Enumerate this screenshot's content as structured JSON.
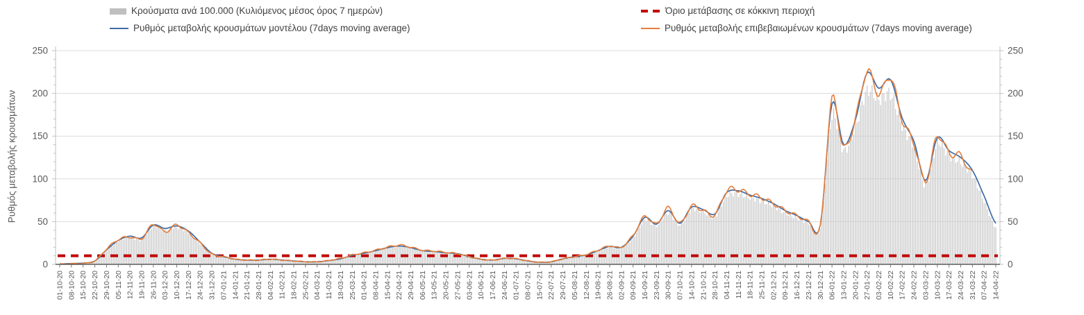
{
  "legend": {
    "items": [
      {
        "label": "Κρούσματα ανά 100.000 (Κυλιόμενος μέσος όρος 7 ημερών)",
        "swatch": "bar",
        "color": "#bfbfbf"
      },
      {
        "label": "Ρυθμός μεταβολής κρουσμάτων μοντέλου (7days moving average)",
        "swatch": "line",
        "color": "#3d6ca5"
      },
      {
        "label": "Όριο μετάβασης σε κόκκινη περιοχή",
        "swatch": "dashed",
        "color": "#c00000"
      },
      {
        "label": "Ρυθμός μεταβολής επιβεβαιωμένων κρουσμάτων (7days moving average)",
        "swatch": "line",
        "color": "#e67e3b"
      }
    ]
  },
  "axes": {
    "y_title": "Ρυθμός μεταβολής κρουσμάτων",
    "y_ticks": [
      0,
      50,
      100,
      150,
      200,
      250
    ],
    "y_minor_step": 10,
    "ylim": [
      0,
      250
    ]
  },
  "colors": {
    "bars": "#c8c8c8",
    "model": "#3d6ca5",
    "confirmed": "#e67e3b",
    "threshold": "#c00000",
    "grid": "#dcdcdc",
    "axis_vertical": "#c0c0c0",
    "axis_x": "#3f3f3f",
    "tick_text": "#595959"
  },
  "chart_data": {
    "type": "combo bar + line (daily bars, 7-day moving-average lines)",
    "title": "",
    "xlabel": "",
    "ylabel": "Ρυθμός μεταβολής κρουσμάτων",
    "ylim": [
      0,
      250
    ],
    "grid": true,
    "legend_position": "top",
    "threshold": {
      "label": "Όριο μετάβασης σε κόκκινη περιοχή",
      "value": 10
    },
    "categories": [
      "01-10-20",
      "08-10-20",
      "15-10-20",
      "22-10-20",
      "29-10-20",
      "05-11-20",
      "12-11-20",
      "19-11-20",
      "26-11-20",
      "03-12-20",
      "10-12-20",
      "17-12-20",
      "24-12-20",
      "31-12-20",
      "07-01-21",
      "14-01-21",
      "21-01-21",
      "28-01-21",
      "04-02-21",
      "11-02-21",
      "18-02-21",
      "25-02-21",
      "04-03-21",
      "11-03-21",
      "18-03-21",
      "25-03-21",
      "01-04-21",
      "08-04-21",
      "15-04-21",
      "22-04-21",
      "29-04-21",
      "06-05-21",
      "13-05-21",
      "20-05-21",
      "27-05-21",
      "03-06-21",
      "10-06-21",
      "17-06-21",
      "24-06-21",
      "01-07-21",
      "08-07-21",
      "15-07-21",
      "22-07-21",
      "29-07-21",
      "05-08-21",
      "12-08-21",
      "19-08-21",
      "26-08-21",
      "02-09-21",
      "09-09-21",
      "16-09-21",
      "23-09-21",
      "30-09-21",
      "07-10-21",
      "14-10-21",
      "21-10-21",
      "28-10-21",
      "04-11-21",
      "11-11-21",
      "18-11-21",
      "25-11-21",
      "02-12-21",
      "09-12-21",
      "16-12-21",
      "23-12-21",
      "30-12-21",
      "06-01-22",
      "13-01-22",
      "20-01-22",
      "27-01-22",
      "03-02-22",
      "10-02-22",
      "17-02-22",
      "24-02-22",
      "03-03-22",
      "10-03-22",
      "17-03-22",
      "24-03-22",
      "31-03-22",
      "07-04-22",
      "14-04-22"
    ],
    "series": [
      {
        "name": "Κρούσματα ανά 100.000 (Κυλιόμενος μέσος όρος 7 ημερών)",
        "type": "bar",
        "values": [
          0.3,
          0.8,
          1.2,
          3.5,
          16,
          27,
          31,
          29,
          44,
          40,
          43,
          37,
          24,
          12,
          8,
          5.5,
          4.5,
          4.5,
          5.5,
          4.5,
          3.5,
          2.8,
          2.8,
          4,
          6,
          10,
          12.5,
          15.5,
          19,
          21,
          19,
          15.5,
          14.5,
          13,
          12,
          8.5,
          5.5,
          4.5,
          6.5,
          6,
          3.5,
          2.2,
          2.8,
          6,
          8.5,
          10.5,
          15,
          20,
          19,
          31,
          52,
          45,
          60,
          46,
          64,
          61,
          56,
          80,
          82,
          78,
          74,
          68,
          60,
          54,
          48,
          43,
          173,
          133,
          161,
          203,
          193,
          199,
          162,
          137,
          92,
          141,
          127,
          119,
          104,
          74,
          43
        ]
      },
      {
        "name": "Ρυθμός μεταβολής κρουσμάτων μοντέλου (7days moving average)",
        "type": "line",
        "values": [
          0.5,
          1,
          1.5,
          4,
          17,
          28,
          33,
          31,
          46,
          42,
          45,
          39,
          26,
          13,
          9,
          6,
          5,
          5,
          6,
          5,
          4,
          3,
          3,
          4.5,
          6.5,
          10.5,
          13,
          16,
          19.5,
          21.5,
          19.5,
          16,
          15,
          13.5,
          12.5,
          9,
          6,
          5,
          7,
          6.5,
          4,
          2.5,
          3,
          6.5,
          9,
          11,
          16,
          21,
          20,
          33,
          55,
          47,
          63,
          48,
          67,
          64,
          59,
          84,
          86,
          81,
          77,
          71,
          63,
          57,
          50,
          46,
          188,
          140,
          169,
          224,
          206,
          216,
          171,
          144,
          98,
          148,
          133,
          125,
          110,
          80,
          48
        ]
      },
      {
        "name": "Ρυθμός μεταβολής επιβεβαιωμένων κρουσμάτων (7days moving average)",
        "type": "line",
        "values": [
          0.3,
          0.8,
          1.2,
          4,
          18,
          29,
          32,
          30,
          47,
          38,
          46,
          37,
          25,
          12,
          9,
          6,
          5,
          5,
          6,
          5,
          4,
          3,
          3,
          4.5,
          7,
          11,
          13.5,
          16.5,
          20,
          22.5,
          20,
          16.5,
          15.5,
          14,
          12.5,
          9,
          6,
          5,
          7,
          6.5,
          4,
          2.5,
          3,
          6.5,
          9,
          11.5,
          16.5,
          21.5,
          20,
          34,
          56,
          47,
          66,
          48,
          68,
          63,
          58,
          86,
          87,
          82,
          78,
          71,
          63,
          57,
          50,
          45,
          193,
          136,
          170,
          226,
          199,
          219,
          169,
          142,
          97,
          150,
          130,
          127,
          106,
          null,
          null
        ]
      }
    ]
  }
}
